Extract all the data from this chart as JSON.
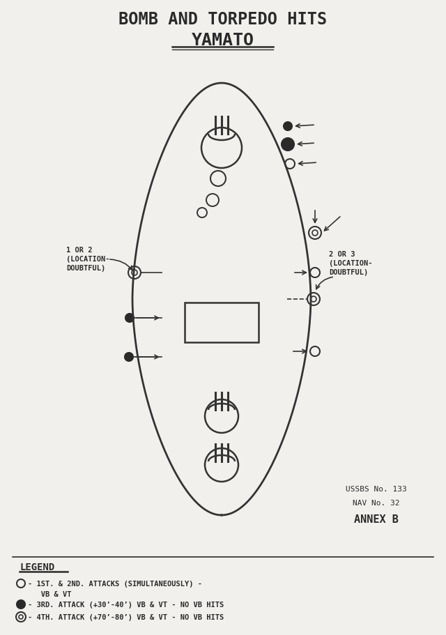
{
  "title_line1": "BOMB AND TORPEDO HITS",
  "title_line2": "YAMATO",
  "bg_color": "#f2f0ed",
  "ship_color": "#333333",
  "ussbs_text": "USSBS No. 133",
  "nav_text": "NAV No. 32",
  "annex_text": "ANNEX B",
  "legend_title": "LEGEND",
  "annotation_left": "1 OR 2\n(LOCATION-\nDOUBTFUL)",
  "annotation_right": "2 OR 3\n(LOCATION-\nDOUBTFUL)"
}
